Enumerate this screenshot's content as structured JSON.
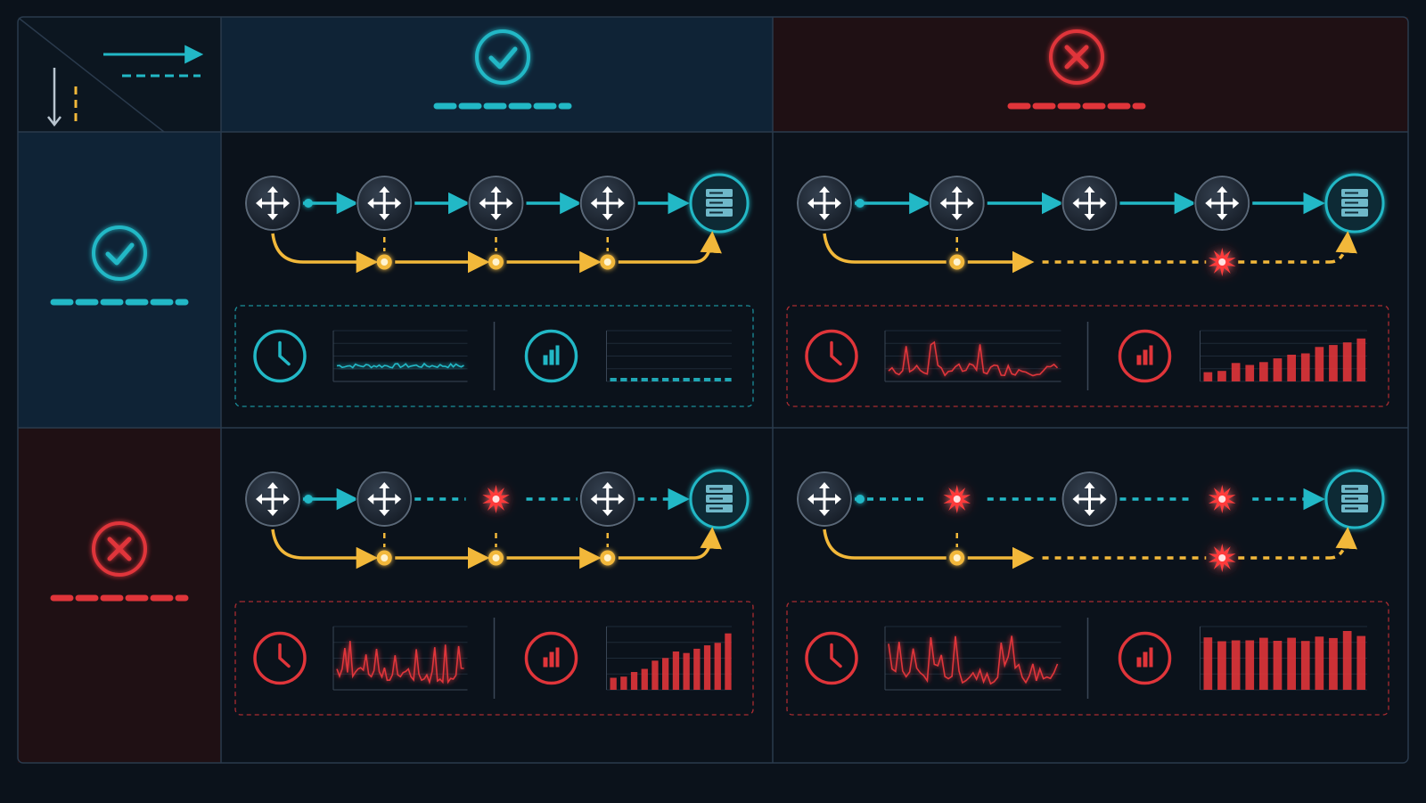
{
  "legend": {
    "icon_names": [
      "arrow-right-icon",
      "arrow-down-icon"
    ]
  },
  "columns": [
    {
      "status": "success",
      "icon": "check-circle-icon"
    },
    {
      "status": "failure",
      "icon": "x-circle-icon"
    }
  ],
  "rows": [
    {
      "status": "success",
      "icon": "check-circle-icon"
    },
    {
      "status": "failure",
      "icon": "x-circle-icon"
    }
  ],
  "colors": {
    "background": "#0b121b",
    "grid_line": "#2a3a4c",
    "success_cyan": "#22b8c6",
    "failure_red": "#e0353a",
    "path_yellow": "#f2b83a",
    "node_fill": "#232d3b",
    "success_header_bg": "#0f2336",
    "failure_header_bg": "#1f1014"
  },
  "cells": [
    {
      "id": "success-success",
      "primary_path": [
        "router",
        "router",
        "router",
        "router",
        "server"
      ],
      "primary_failures": [],
      "backup_failures": [],
      "backup_relays": 3,
      "latency_trend": "stable-low",
      "load_level": "low-flat"
    },
    {
      "id": "success-failure",
      "primary_path": [
        "router",
        "router",
        "router",
        "router",
        "server"
      ],
      "primary_failures": [],
      "backup_failures": [
        "midpoint"
      ],
      "backup_relays": 1,
      "latency_trend": "spiky",
      "load_level": "rising"
    },
    {
      "id": "failure-success",
      "primary_path": [
        "router",
        "router",
        "failure",
        "router",
        "server"
      ],
      "primary_failures": [
        "third-hop"
      ],
      "backup_failures": [],
      "backup_relays": 3,
      "latency_trend": "spiky",
      "load_level": "rising"
    },
    {
      "id": "failure-failure",
      "primary_path": [
        "router",
        "failure",
        "router",
        "failure",
        "server"
      ],
      "primary_failures": [
        "second-hop",
        "fourth-hop"
      ],
      "backup_failures": [
        "midpoint"
      ],
      "backup_relays": 1,
      "latency_trend": "highly-spiky",
      "load_level": "saturated"
    }
  ]
}
